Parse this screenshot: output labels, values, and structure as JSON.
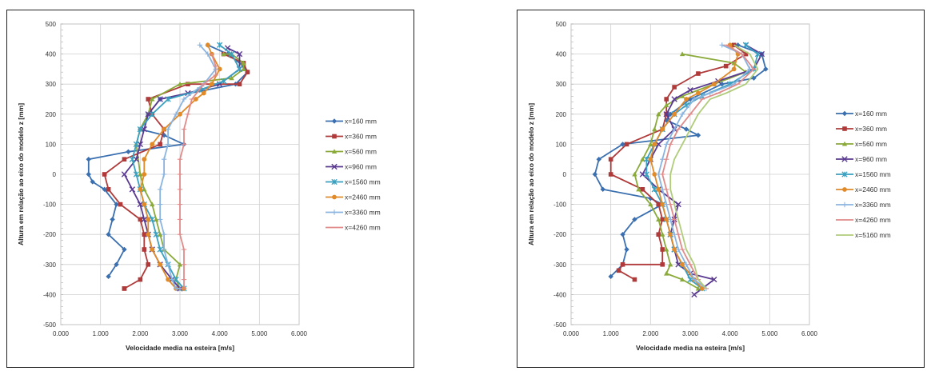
{
  "chart_data": [
    {
      "type": "line",
      "xlabel": "Velocidade media na esteira [m/s]",
      "ylabel": "Altura em relação ao eixo do modelo z [mm]",
      "xlim": [
        0,
        6
      ],
      "ylim": [
        -500,
        500
      ],
      "xticks": [
        "0.000",
        "1.000",
        "2.000",
        "3.000",
        "4.000",
        "5.000",
        "6.000"
      ],
      "yticks": [
        "500",
        "400",
        "300",
        "200",
        "100",
        "0",
        "-100",
        "-200",
        "-300",
        "-400",
        "-500"
      ],
      "grid": true,
      "legend": "right",
      "series": [
        {
          "name": "x=160 mm",
          "color": "#3a6fb0",
          "marker": "diamond",
          "x": [
            3.7,
            4.2,
            4.6,
            4.7,
            4.4,
            2.5,
            2.2,
            2.0,
            2.6,
            3.1,
            1.7,
            0.7,
            0.7,
            0.8,
            1.1,
            1.4,
            1.3,
            1.2,
            1.6,
            1.4,
            1.2
          ],
          "y": [
            430,
            400,
            360,
            340,
            300,
            250,
            200,
            150,
            130,
            100,
            75,
            50,
            0,
            -25,
            -50,
            -100,
            -150,
            -200,
            -250,
            -300,
            -340
          ]
        },
        {
          "name": "x=360 mm",
          "color": "#b03a3a",
          "marker": "square",
          "x": [
            4.1,
            4.6,
            4.7,
            4.5,
            3.2,
            2.2,
            2.3,
            2.6,
            2.5,
            1.6,
            1.1,
            1.2,
            1.5,
            2.0,
            2.1,
            2.1,
            2.2,
            2.0,
            1.6,
            1.6
          ],
          "y": [
            400,
            370,
            340,
            300,
            300,
            250,
            200,
            150,
            100,
            50,
            0,
            -50,
            -100,
            -150,
            -200,
            -250,
            -300,
            -350,
            -380,
            -380
          ]
        },
        {
          "name": "x=560 mm",
          "color": "#8aaa3a",
          "marker": "triangle",
          "x": [
            4.1,
            4.3,
            4.6,
            4.6,
            4.3,
            3.0,
            2.3,
            2.2,
            2.0,
            1.9,
            2.0,
            2.1,
            2.3,
            2.4,
            2.5,
            2.6,
            3.0,
            2.9,
            3.0
          ],
          "y": [
            400,
            400,
            370,
            350,
            320,
            300,
            250,
            200,
            150,
            100,
            0,
            -50,
            -100,
            -150,
            -200,
            -250,
            -300,
            -350,
            -380
          ]
        },
        {
          "name": "x=960 mm",
          "color": "#5a3a90",
          "marker": "x",
          "x": [
            4.2,
            4.5,
            4.5,
            4.0,
            3.2,
            2.5,
            2.2,
            2.1,
            2.0,
            1.9,
            1.6,
            1.8,
            2.0,
            2.1,
            2.2,
            2.3,
            2.5,
            2.8,
            3.0
          ],
          "y": [
            420,
            400,
            350,
            300,
            270,
            250,
            200,
            150,
            100,
            50,
            0,
            -50,
            -100,
            -150,
            -200,
            -250,
            -300,
            -350,
            -380
          ]
        },
        {
          "name": "x=1560 mm",
          "color": "#3aa0c0",
          "marker": "asterisk",
          "x": [
            4.0,
            4.3,
            4.5,
            4.1,
            3.5,
            2.7,
            2.3,
            2.0,
            1.9,
            1.8,
            1.9,
            2.0,
            2.1,
            2.3,
            2.4,
            2.5,
            2.7,
            2.9,
            3.1
          ],
          "y": [
            430,
            400,
            350,
            310,
            280,
            250,
            200,
            150,
            100,
            50,
            0,
            -50,
            -100,
            -150,
            -200,
            -250,
            -300,
            -350,
            -380
          ]
        },
        {
          "name": "x=2460 mm",
          "color": "#e08a2a",
          "marker": "circle",
          "x": [
            3.7,
            3.8,
            4.0,
            3.8,
            3.6,
            3.4,
            3.0,
            2.6,
            2.3,
            2.1,
            2.1,
            2.0,
            2.1,
            2.2,
            2.2,
            2.3,
            2.5,
            2.7,
            2.9,
            3.1
          ],
          "y": [
            430,
            400,
            350,
            300,
            270,
            250,
            200,
            150,
            100,
            50,
            0,
            -50,
            -100,
            -150,
            -200,
            -250,
            -300,
            -350,
            -380,
            -380
          ]
        },
        {
          "name": "x=3360 mm",
          "color": "#8ab4e0",
          "marker": "plus",
          "x": [
            3.5,
            3.7,
            3.9,
            3.6,
            3.1,
            2.9,
            2.7,
            2.7,
            2.6,
            2.6,
            2.5,
            2.5,
            2.5,
            2.6,
            2.6,
            2.7,
            2.8,
            2.9,
            3.0
          ],
          "y": [
            430,
            400,
            350,
            300,
            250,
            200,
            150,
            100,
            50,
            0,
            -50,
            -100,
            -150,
            -200,
            -250,
            -300,
            -350,
            -380,
            -380
          ]
        },
        {
          "name": "x=4260 mm",
          "color": "#e08a8a",
          "marker": "dash",
          "x": [
            3.8,
            3.9,
            3.9,
            3.6,
            3.3,
            3.2,
            3.1,
            3.1,
            3.0,
            3.0,
            3.0,
            3.0,
            3.0,
            3.0,
            3.1,
            3.1,
            3.1,
            3.1
          ],
          "y": [
            400,
            360,
            330,
            300,
            250,
            200,
            150,
            100,
            50,
            0,
            -50,
            -100,
            -150,
            -200,
            -250,
            -300,
            -350,
            -380
          ]
        }
      ]
    },
    {
      "type": "line",
      "xlabel": "Velocidade media na esteira [m/s]",
      "ylabel": "Altura em relação ao eixo do modelo z [mm]",
      "xlim": [
        0,
        6
      ],
      "ylim": [
        -500,
        500
      ],
      "xticks": [
        "0.000",
        "1.000",
        "2.000",
        "3.000",
        "4.000",
        "5.000",
        "6.000"
      ],
      "yticks": [
        "500",
        "400",
        "300",
        "200",
        "100",
        "0",
        "-100",
        "-200",
        "-300",
        "-400",
        "-500"
      ],
      "grid": true,
      "legend": "right",
      "series": [
        {
          "name": "x=160 mm",
          "color": "#3a6fb0",
          "marker": "diamond",
          "x": [
            4.2,
            4.8,
            4.9,
            4.6,
            3.8,
            3.0,
            2.5,
            2.4,
            2.9,
            3.2,
            1.3,
            0.7,
            0.6,
            0.8,
            2.0,
            2.3,
            1.6,
            1.3,
            1.4,
            1.3,
            1.0
          ],
          "y": [
            430,
            400,
            350,
            320,
            300,
            250,
            200,
            180,
            150,
            130,
            100,
            50,
            0,
            -50,
            -80,
            -100,
            -150,
            -200,
            -250,
            -300,
            -340
          ]
        },
        {
          "name": "x=360 mm",
          "color": "#b03a3a",
          "marker": "square",
          "x": [
            4.1,
            4.4,
            3.9,
            3.2,
            2.6,
            2.4,
            2.4,
            2.3,
            1.4,
            1.0,
            1.0,
            1.8,
            2.2,
            2.3,
            2.2,
            2.3,
            2.3,
            1.3,
            1.2,
            1.6
          ],
          "y": [
            430,
            400,
            360,
            335,
            290,
            250,
            200,
            150,
            100,
            50,
            0,
            -50,
            -100,
            -150,
            -200,
            -250,
            -300,
            -300,
            -320,
            -350
          ]
        },
        {
          "name": "x=560 mm",
          "color": "#8aaa3a",
          "marker": "triangle",
          "x": [
            2.8,
            4.1,
            4.4,
            3.6,
            2.8,
            2.4,
            2.2,
            2.1,
            2.0,
            1.8,
            1.6,
            1.7,
            2.0,
            2.2,
            2.3,
            2.4,
            2.5,
            2.4,
            2.8,
            3.2
          ],
          "y": [
            400,
            370,
            340,
            300,
            260,
            230,
            200,
            150,
            100,
            50,
            0,
            -50,
            -100,
            -150,
            -200,
            -250,
            -300,
            -330,
            -350,
            -380
          ]
        },
        {
          "name": "x=960 mm",
          "color": "#5a3a90",
          "marker": "x",
          "x": [
            4.4,
            4.8,
            4.6,
            3.7,
            3.0,
            2.6,
            2.4,
            2.6,
            2.2,
            2.0,
            1.8,
            2.2,
            2.7,
            2.6,
            2.5,
            2.6,
            2.7,
            3.0,
            3.6,
            3.1
          ],
          "y": [
            430,
            400,
            350,
            310,
            280,
            250,
            200,
            150,
            100,
            50,
            0,
            -50,
            -100,
            -150,
            -200,
            -250,
            -300,
            -330,
            -350,
            -400
          ]
        },
        {
          "name": "x=1560 mm",
          "color": "#3aa0c0",
          "marker": "asterisk",
          "x": [
            4.4,
            4.7,
            4.6,
            4.0,
            3.3,
            2.9,
            2.6,
            2.3,
            2.1,
            1.9,
            1.9,
            2.1,
            2.3,
            2.4,
            2.5,
            2.6,
            2.8,
            3.0,
            3.3
          ],
          "y": [
            430,
            400,
            350,
            300,
            260,
            230,
            200,
            150,
            100,
            50,
            0,
            -50,
            -100,
            -150,
            -200,
            -250,
            -300,
            -350,
            -380
          ]
        },
        {
          "name": "x=2460 mm",
          "color": "#e08a2a",
          "marker": "circle",
          "x": [
            4.0,
            4.2,
            4.1,
            3.6,
            3.2,
            2.9,
            2.6,
            2.3,
            2.1,
            2.0,
            2.1,
            2.2,
            2.3,
            2.4,
            2.5,
            2.6,
            2.8,
            3.1,
            3.3
          ],
          "y": [
            430,
            400,
            350,
            300,
            270,
            250,
            200,
            150,
            100,
            50,
            0,
            -50,
            -100,
            -150,
            -200,
            -250,
            -300,
            -350,
            -380
          ]
        },
        {
          "name": "x=3360 mm",
          "color": "#8ab4e0",
          "marker": "plus",
          "x": [
            3.8,
            4.3,
            4.5,
            4.1,
            3.5,
            3.1,
            2.8,
            2.6,
            2.4,
            2.3,
            2.2,
            2.3,
            2.4,
            2.5,
            2.6,
            2.7,
            2.9,
            3.1,
            3.4
          ],
          "y": [
            430,
            400,
            350,
            300,
            270,
            250,
            200,
            150,
            100,
            50,
            0,
            -50,
            -100,
            -150,
            -200,
            -250,
            -300,
            -350,
            -380
          ]
        },
        {
          "name": "x=4260 mm",
          "color": "#e08a8a",
          "marker": "dash",
          "x": [
            3.9,
            4.3,
            4.6,
            4.2,
            3.7,
            3.3,
            3.0,
            2.7,
            2.5,
            2.4,
            2.3,
            2.4,
            2.5,
            2.6,
            2.7,
            2.8,
            3.0,
            3.2,
            3.4
          ],
          "y": [
            430,
            400,
            350,
            300,
            270,
            250,
            200,
            150,
            100,
            50,
            0,
            -50,
            -100,
            -150,
            -200,
            -250,
            -300,
            -350,
            -380
          ]
        },
        {
          "name": "x=5160 mm",
          "color": "#b0cc7a",
          "marker": "line",
          "x": [
            4.1,
            4.5,
            4.7,
            4.4,
            3.9,
            3.5,
            3.2,
            3.0,
            2.8,
            2.6,
            2.5,
            2.5,
            2.6,
            2.7,
            2.8,
            2.9,
            3.1,
            3.2,
            3.4
          ],
          "y": [
            430,
            400,
            350,
            300,
            270,
            250,
            200,
            150,
            100,
            50,
            0,
            -50,
            -100,
            -150,
            -200,
            -250,
            -300,
            -350,
            -380
          ]
        }
      ]
    }
  ]
}
